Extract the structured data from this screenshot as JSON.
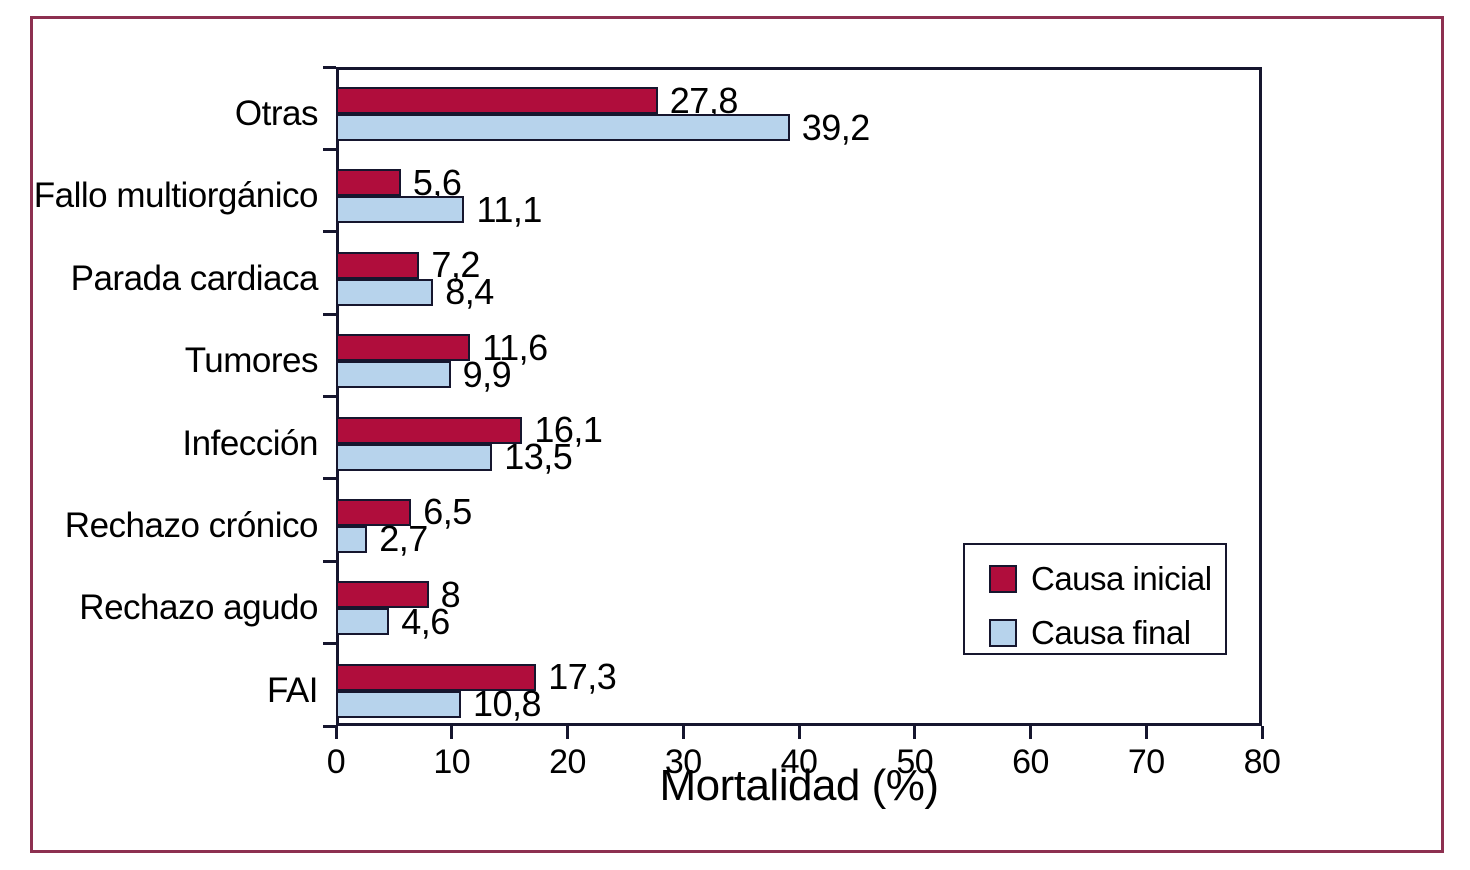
{
  "figure": {
    "frame_color": "#8d3050",
    "background_color": "#ffffff",
    "axis_color": "#16162e",
    "text_color": "#000000"
  },
  "chart_data": {
    "type": "bar",
    "orientation": "horizontal",
    "title": "",
    "xlabel": "Mortalidad (%)",
    "ylabel": "",
    "xlim": [
      0,
      80
    ],
    "xticks": [
      0,
      10,
      20,
      30,
      40,
      50,
      60,
      70,
      80
    ],
    "grid": false,
    "legend_position": "lower-right",
    "categories": [
      "Otras",
      "Fallo multiorgánico",
      "Parada cardiaca",
      "Tumores",
      "Infección",
      "Rechazo crónico",
      "Rechazo agudo",
      "FAI"
    ],
    "series": [
      {
        "name": "Causa inicial",
        "color": "#b00d3c",
        "values": [
          27.8,
          5.6,
          7.2,
          11.6,
          16.1,
          6.5,
          8,
          17.3
        ],
        "value_labels": [
          "27,8",
          "5,6",
          "7,2",
          "11,6",
          "16,1",
          "6,5",
          "8",
          "17,3"
        ]
      },
      {
        "name": "Causa final",
        "color": "#b7d3ec",
        "values": [
          39.2,
          11.1,
          8.4,
          9.9,
          13.5,
          2.7,
          4.6,
          10.8
        ],
        "value_labels": [
          "39,2",
          "11,1",
          "8,4",
          "9,9",
          "13,5",
          "2,7",
          "4,6",
          "10,8"
        ]
      }
    ],
    "bar_outline_color": "#16162e"
  }
}
